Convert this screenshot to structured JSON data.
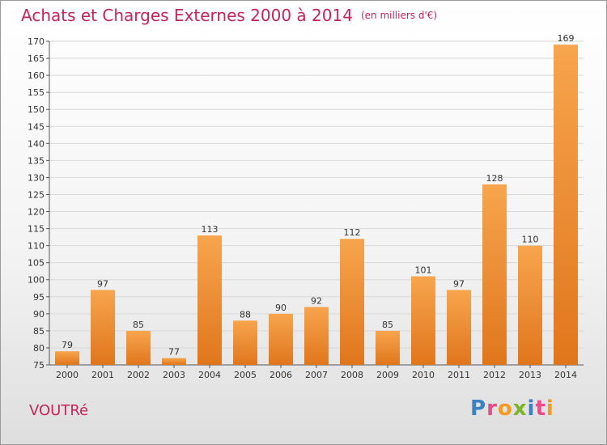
{
  "header": {
    "title": "Achats et Charges Externes 2000 à 2014",
    "unit": "(en milliers d'€)"
  },
  "footer": {
    "commune": "VOUTRé",
    "brand_letters": [
      "P",
      "r",
      "o",
      "x",
      "i",
      "t",
      "i"
    ]
  },
  "colors": {
    "title": "#c8235a",
    "bar_top": "#f7a54e",
    "bar_bottom": "#e0761c",
    "brand": [
      "#3b82c4",
      "#e94b8a",
      "#f39a1f",
      "#7cb52b",
      "#3b82c4",
      "#e94b8a",
      "#f39a1f"
    ]
  },
  "chart_data": {
    "type": "bar",
    "title": "Achats et Charges Externes 2000 à 2014",
    "xlabel": "",
    "ylabel": "",
    "categories": [
      "2000",
      "2001",
      "2002",
      "2003",
      "2004",
      "2005",
      "2006",
      "2007",
      "2008",
      "2009",
      "2010",
      "2011",
      "2012",
      "2013",
      "2014"
    ],
    "values": [
      79,
      97,
      85,
      77,
      113,
      88,
      90,
      92,
      112,
      85,
      101,
      97,
      128,
      110,
      169
    ],
    "data_labels": [
      "79",
      "97",
      "85",
      "77",
      "113",
      "88",
      "90",
      "92",
      "112",
      "85",
      "101",
      "97",
      "128",
      "110",
      "169"
    ],
    "ylim": [
      75,
      170
    ],
    "yticks": [
      75,
      80,
      85,
      90,
      95,
      100,
      105,
      110,
      115,
      120,
      125,
      130,
      135,
      140,
      145,
      150,
      155,
      160,
      165,
      170
    ],
    "grid": true,
    "legend": "none"
  }
}
